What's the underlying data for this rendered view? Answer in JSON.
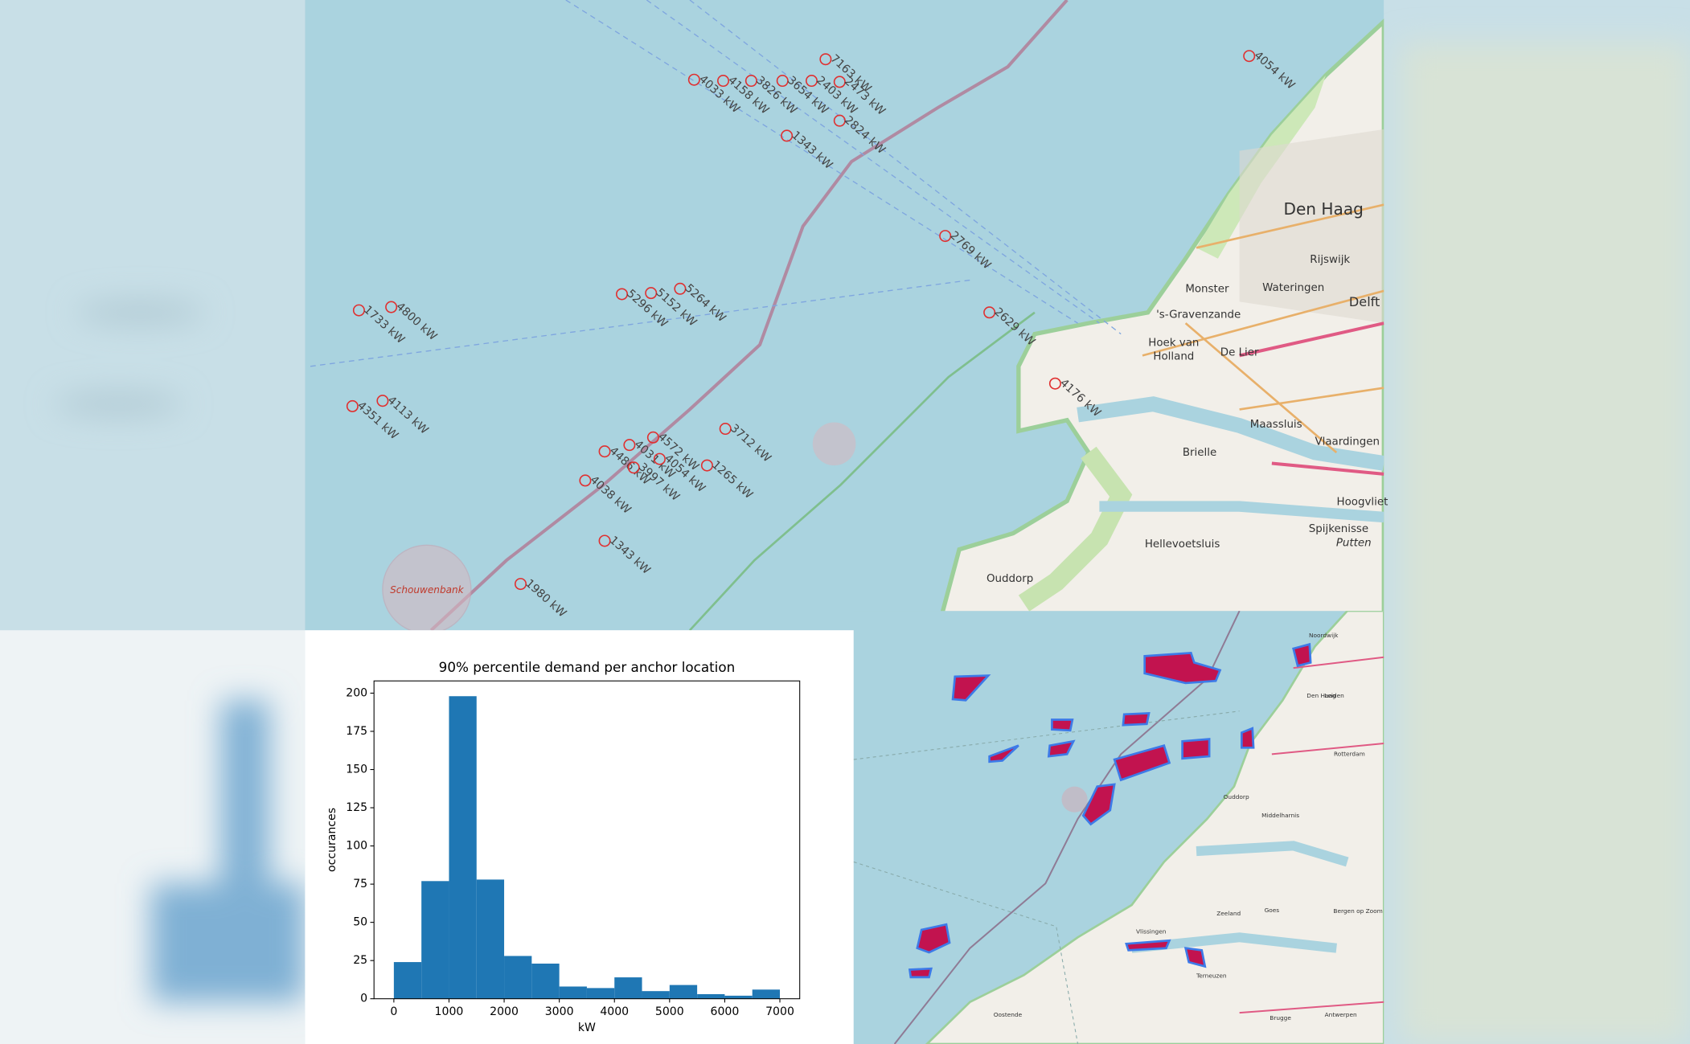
{
  "chart_data": {
    "type": "histogram",
    "title": "90% percentile demand per anchor location",
    "x_label": "kW",
    "y_label": "occurances",
    "bins": [
      0,
      500,
      1000,
      1500,
      2000,
      2500,
      3000,
      3500,
      4000,
      4500,
      5000,
      5500,
      6000,
      6500,
      7000
    ],
    "values": [
      24,
      77,
      198,
      78,
      28,
      23,
      8,
      7,
      14,
      5,
      9,
      3,
      2,
      6
    ],
    "color": "#1f77b4",
    "xlim": [
      -360,
      7360
    ],
    "ylim": [
      0,
      208
    ],
    "xticks": [
      0,
      1000,
      2000,
      3000,
      4000,
      5000,
      6000,
      7000
    ],
    "yticks": [
      0,
      25,
      50,
      75,
      100,
      125,
      150,
      175,
      200
    ]
  },
  "map": {
    "markers": [
      "7163 kW",
      "4054 kW",
      "4033 kW",
      "4158 kW",
      "3826 kW",
      "3654 kW",
      "2403 kW",
      "2473 kW",
      "2824 kW",
      "1343 kW",
      "2769 kW",
      "5296 kW",
      "5152 kW",
      "5264 kW",
      "1733 kW",
      "4800 kW",
      "2629 kW",
      "4176 kW",
      "4351 kW",
      "4113 kW",
      "3712 kW",
      "4486 kW",
      "4031 kW",
      "4572 kW",
      "4054 kW",
      "3997 kW",
      "1265 kW",
      "4038 kW",
      "1343 kW",
      "1980 kW"
    ],
    "places": [
      "Den Haag",
      "Rijswijk",
      "Delft",
      "Monster",
      "Wateringen",
      "'s-Gravenzande",
      "Hoek van",
      "Holland",
      "De Lier",
      "Maassluis",
      "Vlaardingen",
      "Brielle",
      "Hoogvliet",
      "Spijkenisse",
      "Putten",
      "Hellevoetsluis",
      "Ouddorp",
      "Schouwenbank"
    ]
  },
  "inset_map": {
    "places": [
      "Noordwijk",
      "Leiden",
      "Den Haag",
      "Rotterdam",
      "Ouddorp",
      "Middelharnis",
      "Vlissingen",
      "Zeeland",
      "Goes",
      "Terneuzen",
      "Brugge",
      "Oostende",
      "Antwerpen",
      "Bergen op Zoom"
    ]
  }
}
